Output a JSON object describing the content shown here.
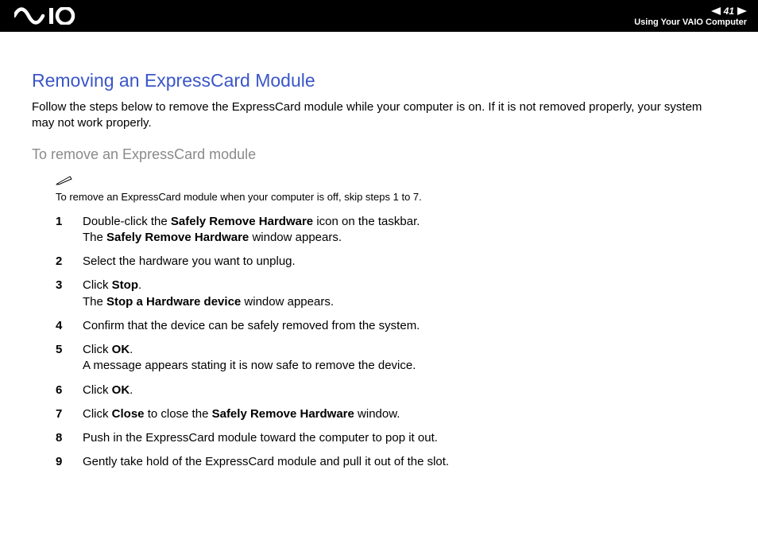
{
  "header": {
    "page_number": "41",
    "section_label": "Using Your VAIO Computer"
  },
  "colors": {
    "header_bg": "#000000",
    "header_fg": "#ffffff",
    "title_color": "#3a56c8",
    "subheading_color": "#8a8a8a",
    "body_color": "#000000",
    "page_bg": "#ffffff"
  },
  "typography": {
    "title_fontsize": 23,
    "subheading_fontsize": 18,
    "body_fontsize": 15,
    "note_fontsize": 13,
    "nav_label_fontsize": 11,
    "nav_page_fontsize": 12
  },
  "title": "Removing an ExpressCard Module",
  "intro": "Follow the steps below to remove the ExpressCard module while your computer is on. If it is not removed properly, your system may not work properly.",
  "subheading": "To remove an ExpressCard module",
  "note": {
    "icon_name": "pencil-note-icon",
    "text": "To remove an ExpressCard module when your computer is off, skip steps 1 to 7."
  },
  "steps": [
    {
      "num": "1",
      "html": "Double-click the <b>Safely Remove Hardware</b> icon on the taskbar.<br>The <b>Safely Remove Hardware</b> window appears."
    },
    {
      "num": "2",
      "html": "Select the hardware you want to unplug."
    },
    {
      "num": "3",
      "html": "Click <b>Stop</b>.<br>The <b>Stop a Hardware device</b> window appears."
    },
    {
      "num": "4",
      "html": "Confirm that the device can be safely removed from the system."
    },
    {
      "num": "5",
      "html": "Click <b>OK</b>.<br>A message appears stating it is now safe to remove the device."
    },
    {
      "num": "6",
      "html": "Click <b>OK</b>."
    },
    {
      "num": "7",
      "html": "Click <b>Close</b> to close the <b>Safely Remove Hardware</b> window."
    },
    {
      "num": "8",
      "html": "Push in the ExpressCard module toward the computer to pop it out."
    },
    {
      "num": "9",
      "html": "Gently take hold of the ExpressCard module and pull it out of the slot."
    }
  ]
}
